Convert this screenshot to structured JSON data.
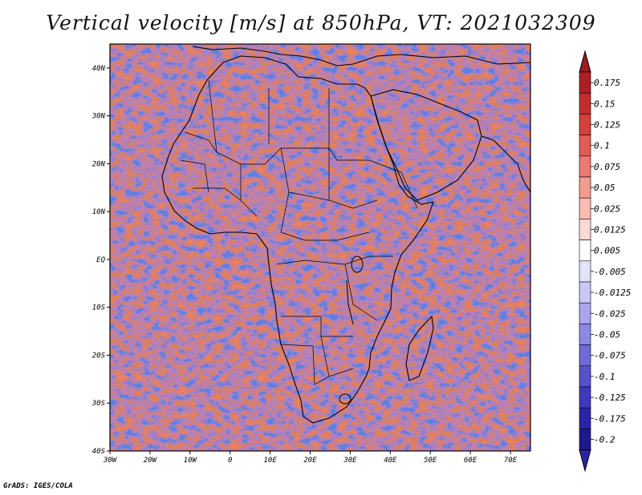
{
  "title": "Vertical velocity [m/s] at 850hPa, VT: 2021032309",
  "credit": "GrADS: IGES/COLA",
  "map": {
    "lon_range": [
      -30,
      75
    ],
    "lat_range": [
      -40,
      45
    ],
    "lat_ticks": [
      {
        "value": 40,
        "label": "40N"
      },
      {
        "value": 30,
        "label": "30N"
      },
      {
        "value": 20,
        "label": "20N"
      },
      {
        "value": 10,
        "label": "10N"
      },
      {
        "value": 0,
        "label": "EQ"
      },
      {
        "value": -10,
        "label": "10S"
      },
      {
        "value": -20,
        "label": "20S"
      },
      {
        "value": -30,
        "label": "30S"
      },
      {
        "value": -40,
        "label": "40S"
      }
    ],
    "lon_ticks": [
      {
        "value": -30,
        "label": "30W"
      },
      {
        "value": -20,
        "label": "20W"
      },
      {
        "value": -10,
        "label": "10W"
      },
      {
        "value": 0,
        "label": "0"
      },
      {
        "value": 10,
        "label": "10E"
      },
      {
        "value": 20,
        "label": "20E"
      },
      {
        "value": 30,
        "label": "30E"
      },
      {
        "value": 40,
        "label": "40E"
      },
      {
        "value": 50,
        "label": "50E"
      },
      {
        "value": 60,
        "label": "60E"
      },
      {
        "value": 70,
        "label": "70E"
      }
    ]
  },
  "colorbar": {
    "levels": [
      "0.175",
      "0.15",
      "0.125",
      "0.1",
      "0.075",
      "0.05",
      "0.025",
      "0.0125",
      "0.005",
      "-0.005",
      "-0.0125",
      "-0.025",
      "-0.05",
      "-0.075",
      "-0.1",
      "-0.125",
      "-0.175",
      "-0.2"
    ],
    "colors": [
      "#ad1f24",
      "#c42b2f",
      "#d6413d",
      "#e25b55",
      "#ec7a72",
      "#f39c92",
      "#f8bcb3",
      "#fcd9d2",
      "#ffffff",
      "#e3e3fb",
      "#c9c8f4",
      "#a9a6ec",
      "#8c88e3",
      "#6f6ad8",
      "#5752cc",
      "#3f39bd",
      "#2a25a8",
      "#1e1a8c"
    ],
    "top_color": "#9c1b1f",
    "bottom_color": "#2b23a0"
  }
}
